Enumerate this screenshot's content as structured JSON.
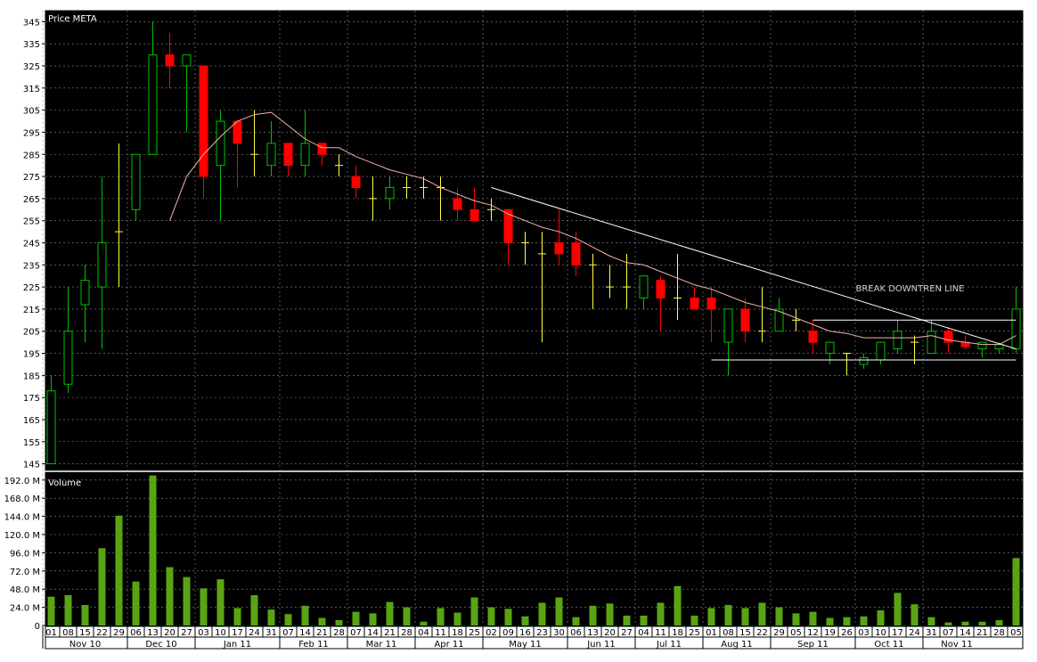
{
  "chart_data": [
    {
      "type": "candlestick",
      "title": "Price META",
      "y_ticks": [
        145,
        155,
        165,
        175,
        185,
        195,
        205,
        215,
        225,
        235,
        245,
        255,
        265,
        275,
        285,
        295,
        305,
        315,
        325,
        335,
        345
      ],
      "ylim": [
        142,
        350
      ],
      "grid": true,
      "weeks": [
        "01",
        "08",
        "15",
        "22",
        "29",
        "06",
        "13",
        "20",
        "27",
        "03",
        "10",
        "17",
        "24",
        "31",
        "07",
        "14",
        "21",
        "28",
        "07",
        "14",
        "21",
        "28",
        "04",
        "11",
        "18",
        "25",
        "02",
        "09",
        "16",
        "23",
        "30",
        "06",
        "13",
        "20",
        "27",
        "04",
        "11",
        "18",
        "25",
        "01",
        "08",
        "15",
        "22",
        "29",
        "05",
        "12",
        "19",
        "26",
        "03",
        "10",
        "17",
        "24",
        "31",
        "07",
        "14",
        "21",
        "28",
        "05"
      ],
      "months": [
        {
          "label": "Nov 10",
          "start": 0,
          "span": 5
        },
        {
          "label": "Dec 10",
          "start": 5,
          "span": 4
        },
        {
          "label": "Jan 11",
          "start": 9,
          "span": 5
        },
        {
          "label": "Feb 11",
          "start": 14,
          "span": 4
        },
        {
          "label": "Mar 11",
          "start": 18,
          "span": 4
        },
        {
          "label": "Apr 11",
          "start": 22,
          "span": 4
        },
        {
          "label": "May 11",
          "start": 26,
          "span": 5
        },
        {
          "label": "Jun 11",
          "start": 31,
          "span": 4
        },
        {
          "label": "Jul 11",
          "start": 35,
          "span": 4
        },
        {
          "label": "Aug 11",
          "start": 39,
          "span": 4
        },
        {
          "label": "Sep 11",
          "start": 43,
          "span": 5
        },
        {
          "label": "Oct 11",
          "start": 48,
          "span": 4
        },
        {
          "label": "Nov 11",
          "start": 52,
          "span": 4
        }
      ],
      "candles": [
        {
          "o": 145,
          "h": 185,
          "l": 145,
          "c": 178
        },
        {
          "o": 181,
          "h": 225,
          "l": 177,
          "c": 205
        },
        {
          "o": 217,
          "h": 235,
          "l": 200,
          "c": 228
        },
        {
          "o": 225,
          "h": 275,
          "l": 197,
          "c": 245
        },
        {
          "o": 250,
          "h": 290,
          "l": 225,
          "c": 250
        },
        {
          "o": 260,
          "h": 285,
          "l": 255,
          "c": 285
        },
        {
          "o": 285,
          "h": 345,
          "l": 285,
          "c": 330
        },
        {
          "o": 330,
          "h": 340,
          "l": 315,
          "c": 325
        },
        {
          "o": 325,
          "h": 330,
          "l": 295,
          "c": 330
        },
        {
          "o": 325,
          "h": 325,
          "l": 265,
          "c": 275
        },
        {
          "o": 280,
          "h": 305,
          "l": 255,
          "c": 300
        },
        {
          "o": 300,
          "h": 300,
          "l": 270,
          "c": 290
        },
        {
          "o": 285,
          "h": 305,
          "l": 275,
          "c": 285
        },
        {
          "o": 280,
          "h": 300,
          "l": 275,
          "c": 290
        },
        {
          "o": 290,
          "h": 290,
          "l": 275,
          "c": 280
        },
        {
          "o": 280,
          "h": 305,
          "l": 275,
          "c": 290
        },
        {
          "o": 290,
          "h": 290,
          "l": 280,
          "c": 285
        },
        {
          "o": 280,
          "h": 285,
          "l": 275,
          "c": 280
        },
        {
          "o": 275,
          "h": 280,
          "l": 265,
          "c": 270
        },
        {
          "o": 265,
          "h": 275,
          "l": 255,
          "c": 265
        },
        {
          "o": 265,
          "h": 275,
          "l": 260,
          "c": 270
        },
        {
          "o": 270,
          "h": 275,
          "l": 265,
          "c": 270
        },
        {
          "o": 270,
          "h": 275,
          "l": 265,
          "c": 270
        },
        {
          "o": 270,
          "h": 275,
          "l": 255,
          "c": 270
        },
        {
          "o": 265,
          "h": 270,
          "l": 255,
          "c": 260
        },
        {
          "o": 260,
          "h": 270,
          "l": 255,
          "c": 255
        },
        {
          "o": 260,
          "h": 265,
          "l": 255,
          "c": 260
        },
        {
          "o": 260,
          "h": 260,
          "l": 235,
          "c": 245
        },
        {
          "o": 245,
          "h": 250,
          "l": 235,
          "c": 245
        },
        {
          "o": 240,
          "h": 250,
          "l": 200,
          "c": 240
        },
        {
          "o": 245,
          "h": 260,
          "l": 235,
          "c": 240
        },
        {
          "o": 245,
          "h": 250,
          "l": 230,
          "c": 235
        },
        {
          "o": 235,
          "h": 240,
          "l": 215,
          "c": 235
        },
        {
          "o": 225,
          "h": 235,
          "l": 220,
          "c": 225
        },
        {
          "o": 225,
          "h": 240,
          "l": 215,
          "c": 225
        },
        {
          "o": 220,
          "h": 230,
          "l": 215,
          "c": 230
        },
        {
          "o": 228,
          "h": 230,
          "l": 205,
          "c": 220
        },
        {
          "o": 220,
          "h": 240,
          "l": 210,
          "c": 220
        },
        {
          "o": 220,
          "h": 225,
          "l": 215,
          "c": 215
        },
        {
          "o": 220,
          "h": 225,
          "l": 200,
          "c": 215
        },
        {
          "o": 200,
          "h": 215,
          "l": 185,
          "c": 215
        },
        {
          "o": 215,
          "h": 220,
          "l": 200,
          "c": 205
        },
        {
          "o": 205,
          "h": 225,
          "l": 200,
          "c": 205
        },
        {
          "o": 205,
          "h": 220,
          "l": 205,
          "c": 215
        },
        {
          "o": 210,
          "h": 215,
          "l": 205,
          "c": 210
        },
        {
          "o": 205,
          "h": 210,
          "l": 195,
          "c": 200
        },
        {
          "o": 195,
          "h": 200,
          "l": 190,
          "c": 200
        },
        {
          "o": 195,
          "h": 195,
          "l": 185,
          "c": 195
        },
        {
          "o": 190,
          "h": 195,
          "l": 188,
          "c": 193
        },
        {
          "o": 192,
          "h": 200,
          "l": 190,
          "c": 200
        },
        {
          "o": 197,
          "h": 210,
          "l": 195,
          "c": 205
        },
        {
          "o": 200,
          "h": 203,
          "l": 190,
          "c": 200
        },
        {
          "o": 195,
          "h": 210,
          "l": 195,
          "c": 205
        },
        {
          "o": 205,
          "h": 207,
          "l": 195,
          "c": 200
        },
        {
          "o": 200,
          "h": 203,
          "l": 197,
          "c": 198
        },
        {
          "o": 197,
          "h": 200,
          "l": 193,
          "c": 200
        },
        {
          "o": 197,
          "h": 200,
          "l": 195,
          "c": 199
        },
        {
          "o": 197,
          "h": 225,
          "l": 195,
          "c": 215
        }
      ],
      "ma": {
        "color": "#f6b2a8",
        "points": [
          [
            7,
            255
          ],
          [
            8,
            275
          ],
          [
            9,
            285
          ],
          [
            10,
            293
          ],
          [
            11,
            300
          ],
          [
            12,
            303
          ],
          [
            13,
            304
          ],
          [
            14,
            298
          ],
          [
            15,
            292
          ],
          [
            16,
            288
          ],
          [
            17,
            288
          ],
          [
            18,
            284
          ],
          [
            19,
            281
          ],
          [
            20,
            278
          ],
          [
            21,
            276
          ],
          [
            22,
            274
          ],
          [
            23,
            270
          ],
          [
            24,
            267
          ],
          [
            25,
            264
          ],
          [
            26,
            262
          ],
          [
            27,
            258
          ],
          [
            28,
            255
          ],
          [
            29,
            252
          ],
          [
            30,
            250
          ],
          [
            31,
            247
          ],
          [
            32,
            243
          ],
          [
            33,
            239
          ],
          [
            34,
            236
          ],
          [
            35,
            235
          ],
          [
            36,
            232
          ],
          [
            37,
            229
          ],
          [
            38,
            226
          ],
          [
            39,
            224
          ],
          [
            40,
            221
          ],
          [
            41,
            218
          ],
          [
            42,
            216
          ],
          [
            43,
            214
          ],
          [
            44,
            211
          ],
          [
            45,
            208
          ],
          [
            46,
            205
          ],
          [
            47,
            204
          ],
          [
            48,
            202
          ],
          [
            49,
            202
          ],
          [
            50,
            202
          ],
          [
            51,
            202
          ],
          [
            52,
            203
          ],
          [
            53,
            201
          ],
          [
            54,
            200
          ],
          [
            55,
            199
          ],
          [
            56,
            199
          ],
          [
            57,
            203
          ]
        ]
      },
      "trendlines": [
        {
          "x1": 26,
          "y1": 270,
          "x2": 57,
          "y2": 197,
          "color": "#ffffff"
        },
        {
          "x1": 39,
          "y1": 192,
          "x2": 57,
          "y2": 192,
          "color": "#ffffff"
        },
        {
          "x1": 45,
          "y1": 210,
          "x2": 57,
          "y2": 210,
          "color": "#ffffff"
        }
      ],
      "annotation": {
        "text": "BREAK DOWNTREN LINE",
        "x": 49,
        "y": 223
      },
      "colors": {
        "up": "#00c000",
        "down": "#ff0000",
        "doji": "#ffff40",
        "background": "#000000",
        "grid": "#8a8a8a"
      }
    },
    {
      "type": "bar",
      "title": "Volume",
      "y_ticks": [
        {
          "v": 0,
          "label": "0"
        },
        {
          "v": 24,
          "label": "24.0 M"
        },
        {
          "v": 48,
          "label": "48.0 M"
        },
        {
          "v": 72,
          "label": "72.0 M"
        },
        {
          "v": 96,
          "label": "96.0 M"
        },
        {
          "v": 120,
          "label": "120.0 M"
        },
        {
          "v": 144,
          "label": "144.0 M"
        },
        {
          "v": 168,
          "label": "168.0 M"
        },
        {
          "v": 192,
          "label": "192.0 M"
        }
      ],
      "ylim": [
        0,
        200
      ],
      "values": [
        38,
        40,
        27,
        102,
        145,
        58,
        198,
        77,
        64,
        49,
        61,
        23,
        40,
        21,
        15,
        26,
        10,
        7,
        18,
        16,
        31,
        24,
        5,
        23,
        17,
        37,
        24,
        22,
        12,
        30,
        37,
        11,
        26,
        29,
        13,
        13,
        30,
        52,
        13,
        23,
        27,
        23,
        30,
        24,
        16,
        18,
        10,
        11,
        12,
        20,
        43,
        28,
        11,
        4,
        5,
        5,
        7,
        89
      ],
      "color": "#5aa414"
    }
  ]
}
